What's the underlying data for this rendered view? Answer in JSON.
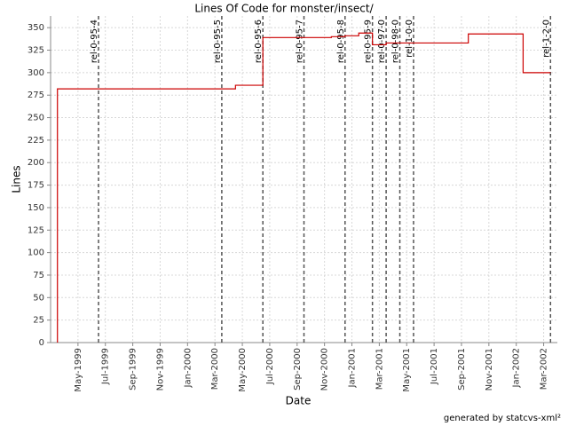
{
  "chart_data": {
    "type": "step",
    "title": "Lines Of Code for monster/insect/",
    "x_label": "Date",
    "y_label": "Lines",
    "footer": "generated by statcvs-xml²",
    "series": [
      {
        "name": "Lines",
        "color": "#cc0000",
        "x": [
          "1999-03",
          "2000-04",
          "2000-06",
          "2000-06",
          "2000-11",
          "2000-12",
          "2001-01",
          "2001-02",
          "2001-03",
          "2001-09",
          "2002-01",
          "2002-03"
        ],
        "values": [
          282,
          286,
          329,
          339,
          340,
          341,
          344,
          331,
          333,
          343,
          300,
          300
        ]
      }
    ],
    "markers": [
      {
        "label": "rel-0-95-4",
        "x": "1999-06"
      },
      {
        "label": "rel-0-95-5",
        "x": "2000-03"
      },
      {
        "label": "rel-0-95-6",
        "x": "2000-06"
      },
      {
        "label": "rel-0-95-7",
        "x": "2000-09"
      },
      {
        "label": "rel-0-95-8",
        "x": "2000-12"
      },
      {
        "label": "rel-0-95-9",
        "x": "2001-02"
      },
      {
        "label": "rel-0-97-0",
        "x": "2001-03"
      },
      {
        "label": "rel-0-98-0",
        "x": "2001-04"
      },
      {
        "label": "rel-1-0-0",
        "x": "2001-05"
      },
      {
        "label": "rel-1-2-0",
        "x": "2002-03"
      }
    ],
    "xlim": [
      "1999-03",
      "2002-04"
    ],
    "xticks": [
      {
        "value": "1999-05",
        "label": "May-1999"
      },
      {
        "value": "1999-07",
        "label": "Jul-1999"
      },
      {
        "value": "1999-09",
        "label": "Sep-1999"
      },
      {
        "value": "1999-11",
        "label": "Nov-1999"
      },
      {
        "value": "2000-01",
        "label": "Jan-2000"
      },
      {
        "value": "2000-03",
        "label": "Mar-2000"
      },
      {
        "value": "2000-05",
        "label": "May-2000"
      },
      {
        "value": "2000-07",
        "label": "Jul-2000"
      },
      {
        "value": "2000-09",
        "label": "Sep-2000"
      },
      {
        "value": "2000-11",
        "label": "Nov-2000"
      },
      {
        "value": "2001-01",
        "label": "Jan-2001"
      },
      {
        "value": "2001-03",
        "label": "Mar-2001"
      },
      {
        "value": "2001-05",
        "label": "May-2001"
      },
      {
        "value": "2001-07",
        "label": "Jul-2001"
      },
      {
        "value": "2001-09",
        "label": "Sep-2001"
      },
      {
        "value": "2001-11",
        "label": "Nov-2001"
      },
      {
        "value": "2002-01",
        "label": "Jan-2002"
      },
      {
        "value": "2002-03",
        "label": "Mar-2002"
      }
    ],
    "ylim": [
      0,
      363
    ],
    "yticks": [
      0,
      25,
      50,
      75,
      100,
      125,
      150,
      175,
      200,
      225,
      250,
      275,
      300,
      325,
      350
    ],
    "grid": true
  }
}
